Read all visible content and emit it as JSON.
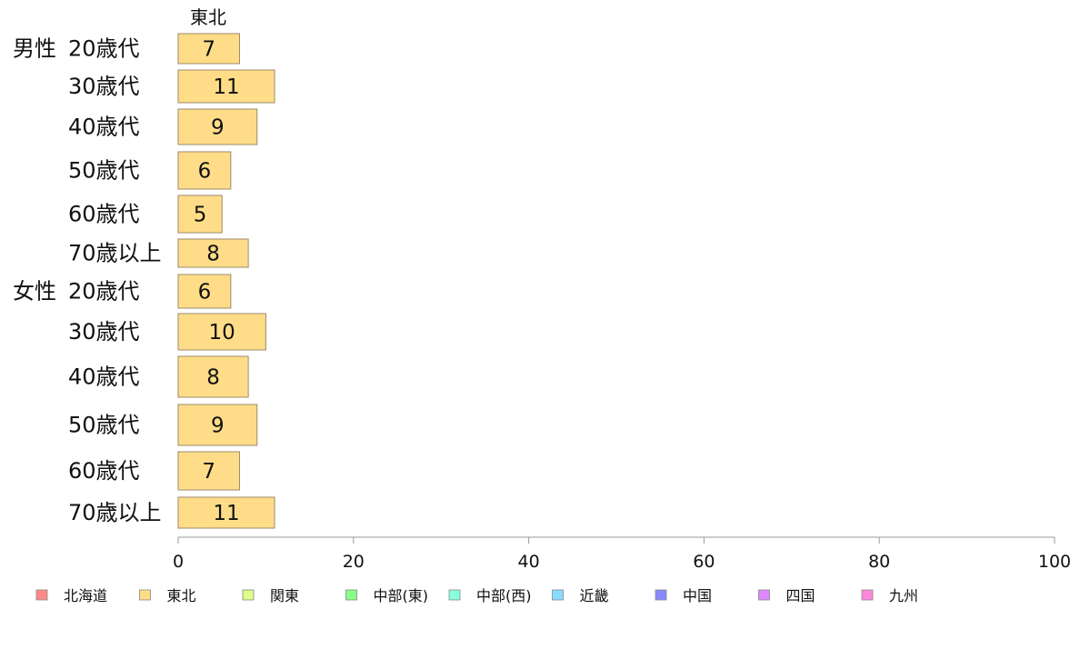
{
  "chart_data": {
    "type": "bar",
    "orientation": "horizontal",
    "stacked": true,
    "series_header": "東北",
    "group_labels": [
      "男性",
      "女性"
    ],
    "categories": [
      {
        "group": "男性",
        "label": "20歳代"
      },
      {
        "group": "",
        "label": "30歳代"
      },
      {
        "group": "",
        "label": "40歳代"
      },
      {
        "group": "",
        "label": "50歳代"
      },
      {
        "group": "",
        "label": "60歳代"
      },
      {
        "group": "",
        "label": "70歳以上"
      },
      {
        "group": "女性",
        "label": "20歳代"
      },
      {
        "group": "",
        "label": "30歳代"
      },
      {
        "group": "",
        "label": "40歳代"
      },
      {
        "group": "",
        "label": "50歳代"
      },
      {
        "group": "",
        "label": "60歳代"
      },
      {
        "group": "",
        "label": "70歳以上"
      }
    ],
    "series": [
      {
        "name": "東北",
        "color": "#FFDD88",
        "values": [
          7,
          11,
          9,
          6,
          5,
          8,
          6,
          10,
          8,
          9,
          7,
          11
        ]
      }
    ],
    "xlim": [
      0,
      100
    ],
    "xticks": [
      0,
      20,
      40,
      60,
      80,
      100
    ],
    "grid": false,
    "legend_position": "bottom",
    "legend": [
      {
        "name": "北海道",
        "color": "#FF8888"
      },
      {
        "name": "東北",
        "color": "#FFDD88"
      },
      {
        "name": "関東",
        "color": "#DDFF88"
      },
      {
        "name": "中部(東)",
        "color": "#88FF88"
      },
      {
        "name": "中部(西)",
        "color": "#88FFDD"
      },
      {
        "name": "近畿",
        "color": "#88DDFF"
      },
      {
        "name": "中国",
        "color": "#8888FF"
      },
      {
        "name": "四国",
        "color": "#DD88FF"
      },
      {
        "name": "九州",
        "color": "#FF88DD"
      }
    ]
  }
}
